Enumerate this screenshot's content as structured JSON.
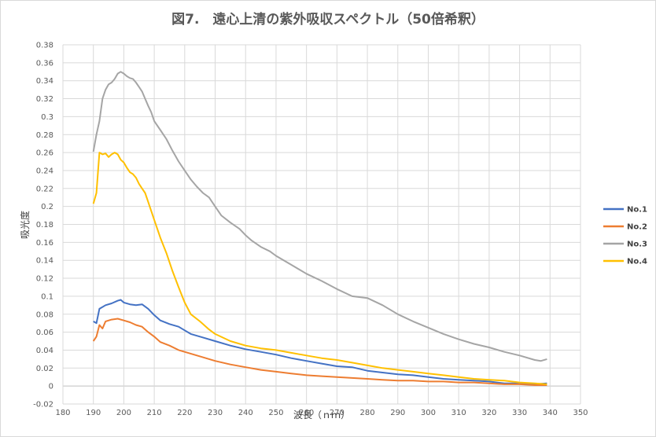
{
  "chart_data": {
    "type": "line",
    "title": "図7.　遠心上清の紫外吸収スペクトル（50倍希釈）",
    "xlabel": "波長（ｎｍ）",
    "ylabel": "吸光度",
    "xlim": [
      180,
      350
    ],
    "ylim": [
      -0.02,
      0.38
    ],
    "xticks": [
      180,
      190,
      200,
      210,
      220,
      230,
      240,
      250,
      260,
      270,
      280,
      290,
      300,
      310,
      320,
      330,
      340,
      350
    ],
    "yticks": [
      -0.02,
      0,
      0.02,
      0.04,
      0.06,
      0.08,
      0.1,
      0.12,
      0.14,
      0.16,
      0.18,
      0.2,
      0.22,
      0.24,
      0.26,
      0.28,
      0.3,
      0.32,
      0.34,
      0.36,
      0.38
    ],
    "ytick_labels": [
      "-0.02",
      "0",
      "0.02",
      "0.04",
      "0.06",
      "0.08",
      "0.1",
      "0.12",
      "0.14",
      "0.16",
      "0.18",
      "0.2",
      "0.22",
      "0.24",
      "0.26",
      "0.28",
      "0.3",
      "0.32",
      "0.34",
      "0.36",
      "0.38"
    ],
    "grid": true,
    "legend": "right",
    "series": [
      {
        "name": "No.1",
        "color": "#4472C4",
        "x": [
          190,
          191,
          192,
          194,
          196,
          198,
          199,
          200,
          202,
          204,
          206,
          208,
          210,
          212,
          215,
          218,
          220,
          222,
          225,
          230,
          235,
          240,
          245,
          250,
          255,
          260,
          265,
          270,
          275,
          280,
          285,
          290,
          295,
          300,
          305,
          310,
          315,
          320,
          325,
          330,
          335,
          339
        ],
        "y": [
          0.072,
          0.07,
          0.086,
          0.09,
          0.092,
          0.095,
          0.096,
          0.093,
          0.091,
          0.09,
          0.091,
          0.086,
          0.079,
          0.073,
          0.069,
          0.066,
          0.062,
          0.058,
          0.055,
          0.05,
          0.045,
          0.041,
          0.038,
          0.035,
          0.031,
          0.028,
          0.025,
          0.022,
          0.021,
          0.017,
          0.015,
          0.013,
          0.012,
          0.01,
          0.008,
          0.007,
          0.006,
          0.005,
          0.003,
          0.003,
          0.002,
          0.003
        ]
      },
      {
        "name": "No.2",
        "color": "#ED7D31",
        "x": [
          190,
          191,
          192,
          193,
          194,
          196,
          198,
          200,
          202,
          204,
          206,
          208,
          210,
          212,
          215,
          218,
          220,
          225,
          230,
          235,
          240,
          245,
          250,
          255,
          260,
          265,
          270,
          275,
          280,
          285,
          290,
          295,
          300,
          305,
          310,
          315,
          320,
          325,
          330,
          335,
          339
        ],
        "y": [
          0.05,
          0.055,
          0.068,
          0.064,
          0.072,
          0.074,
          0.075,
          0.073,
          0.071,
          0.068,
          0.066,
          0.06,
          0.055,
          0.049,
          0.045,
          0.04,
          0.038,
          0.033,
          0.028,
          0.024,
          0.021,
          0.018,
          0.016,
          0.014,
          0.012,
          0.011,
          0.01,
          0.009,
          0.008,
          0.007,
          0.006,
          0.006,
          0.005,
          0.005,
          0.004,
          0.004,
          0.003,
          0.002,
          0.002,
          0.001,
          0.001
        ]
      },
      {
        "name": "No.3",
        "color": "#A5A5A5",
        "x": [
          190,
          191,
          192,
          193,
          194,
          195,
          196,
          197,
          198,
          199,
          200,
          201,
          202,
          203,
          204,
          205,
          206,
          207,
          208,
          209,
          210,
          212,
          214,
          216,
          218,
          220,
          222,
          224,
          226,
          228,
          230,
          232,
          235,
          238,
          240,
          242,
          245,
          248,
          250,
          255,
          260,
          265,
          270,
          275,
          280,
          285,
          290,
          295,
          300,
          305,
          310,
          315,
          320,
          325,
          330,
          335,
          337,
          339
        ],
        "y": [
          0.261,
          0.28,
          0.295,
          0.32,
          0.33,
          0.336,
          0.338,
          0.342,
          0.348,
          0.35,
          0.348,
          0.345,
          0.343,
          0.342,
          0.338,
          0.333,
          0.328,
          0.32,
          0.312,
          0.305,
          0.295,
          0.285,
          0.275,
          0.262,
          0.25,
          0.24,
          0.23,
          0.222,
          0.215,
          0.21,
          0.2,
          0.19,
          0.182,
          0.175,
          0.168,
          0.162,
          0.155,
          0.15,
          0.145,
          0.135,
          0.125,
          0.117,
          0.108,
          0.1,
          0.098,
          0.09,
          0.08,
          0.072,
          0.065,
          0.058,
          0.052,
          0.047,
          0.043,
          0.038,
          0.034,
          0.029,
          0.028,
          0.03
        ]
      },
      {
        "name": "No.4",
        "color": "#FFC000",
        "x": [
          190,
          191,
          192,
          193,
          194,
          195,
          196,
          197,
          198,
          199,
          200,
          201,
          202,
          203,
          204,
          205,
          206,
          207,
          208,
          210,
          212,
          214,
          216,
          218,
          220,
          222,
          225,
          228,
          230,
          235,
          240,
          245,
          250,
          255,
          260,
          265,
          270,
          275,
          280,
          285,
          290,
          295,
          300,
          305,
          310,
          315,
          320,
          325,
          330,
          335,
          339
        ],
        "y": [
          0.203,
          0.215,
          0.26,
          0.258,
          0.259,
          0.255,
          0.258,
          0.26,
          0.258,
          0.252,
          0.249,
          0.243,
          0.238,
          0.236,
          0.232,
          0.225,
          0.22,
          0.215,
          0.205,
          0.185,
          0.165,
          0.148,
          0.128,
          0.11,
          0.093,
          0.08,
          0.072,
          0.063,
          0.058,
          0.05,
          0.045,
          0.042,
          0.04,
          0.037,
          0.034,
          0.031,
          0.029,
          0.026,
          0.023,
          0.02,
          0.018,
          0.016,
          0.014,
          0.012,
          0.01,
          0.008,
          0.007,
          0.006,
          0.004,
          0.003,
          0.002
        ]
      }
    ]
  }
}
